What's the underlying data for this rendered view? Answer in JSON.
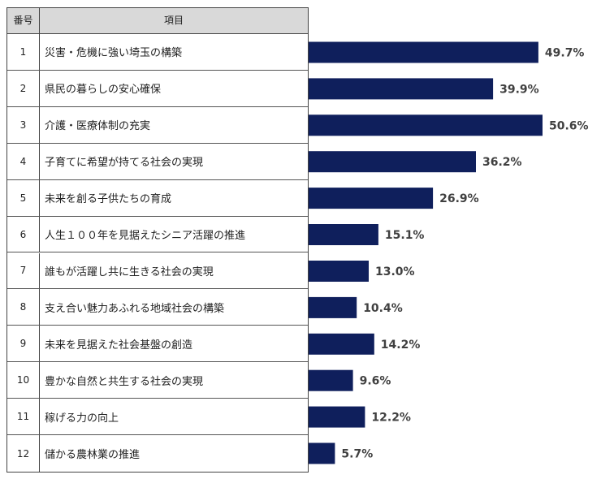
{
  "table": {
    "header_num": "番号",
    "header_item": "項目"
  },
  "chart_data": {
    "type": "bar",
    "orientation": "horizontal",
    "categories": [
      "1",
      "2",
      "3",
      "4",
      "5",
      "6",
      "7",
      "8",
      "9",
      "10",
      "11",
      "12"
    ],
    "items": [
      "災害・危機に強い埼玉の構築",
      "県民の暮らしの安心確保",
      "介護・医療体制の充実",
      "子育てに希望が持てる社会の実現",
      "未来を創る子供たちの育成",
      "人生１００年を見据えたシニア活躍の推進",
      "誰もが活躍し共に生きる社会の実現",
      "支え合い魅力あふれる地域社会の構築",
      "未来を見据えた社会基盤の創造",
      "豊かな自然と共生する社会の実現",
      "稼げる力の向上",
      "儲かる農林業の推進"
    ],
    "values": [
      49.7,
      39.9,
      50.6,
      36.2,
      26.9,
      15.1,
      13.0,
      10.4,
      14.2,
      9.6,
      12.2,
      5.7
    ],
    "labels": [
      "49.7%",
      "39.9%",
      "50.6%",
      "36.2%",
      "26.9%",
      "15.1%",
      "13.0%",
      "10.4%",
      "14.2%",
      "9.6%",
      "12.2%",
      "5.7%"
    ],
    "xlim": [
      0,
      50.6
    ],
    "grid": false,
    "bar_color": "#0f1f5c"
  }
}
